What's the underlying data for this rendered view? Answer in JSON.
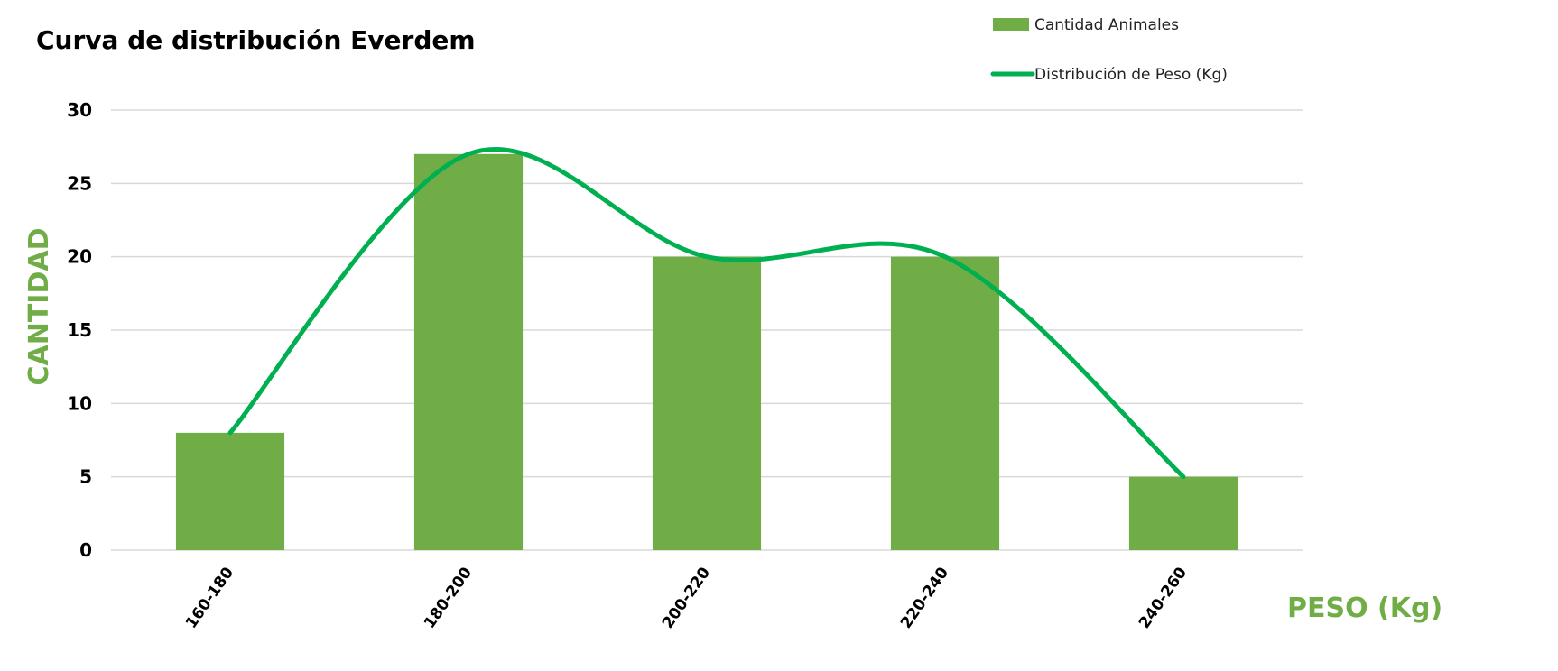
{
  "chart_data": {
    "type": "bar",
    "title": "Curva de distribución Everdem",
    "xlabel": "PESO (Kg)",
    "ylabel": "CANTIDAD",
    "categories": [
      "160-180",
      "180-200",
      "200-220",
      "220-240",
      "240-260"
    ],
    "series": [
      {
        "name": "Cantidad Animales",
        "type": "bar",
        "values": [
          8,
          27,
          20,
          20,
          5
        ],
        "color": "#70AD47"
      },
      {
        "name": "Distribución de Peso (Kg)",
        "type": "line",
        "smooth": true,
        "values": [
          8,
          27,
          20,
          20,
          5
        ],
        "color": "#00B050"
      }
    ],
    "ylim": [
      0,
      30
    ],
    "yticks": [
      0,
      5,
      10,
      15,
      20,
      25,
      30
    ],
    "grid": true,
    "legend_position": "top-right",
    "colors": {
      "axis_title": "#70AD47",
      "gridline": "#D9D9D9"
    }
  }
}
